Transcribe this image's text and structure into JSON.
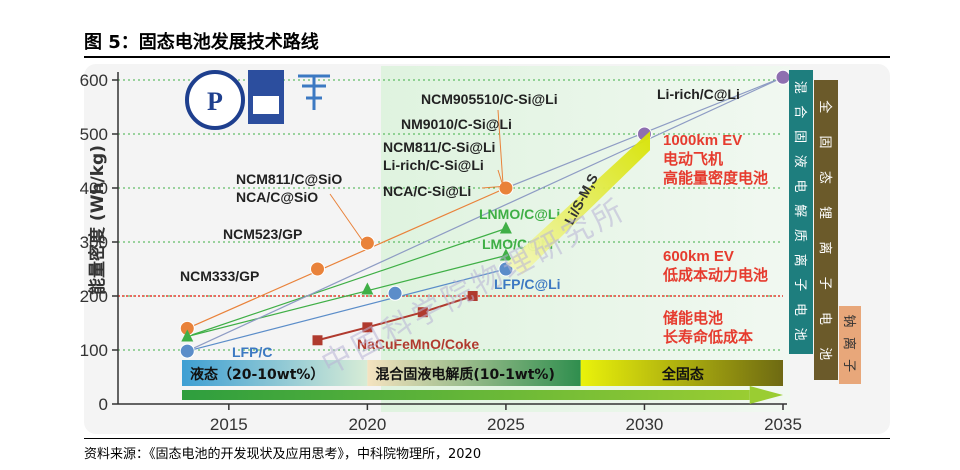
{
  "figure_title": "图 5：固态电池发展技术路线",
  "source_note": "资料来源：《固态电池的开发现状及应用思考》，中科院物理所，2020",
  "chart_data": {
    "type": "scatter",
    "title": "",
    "ylabel": "能量密度 (Wh/kg)",
    "xlabel": "",
    "x_ticks": [
      2015,
      2020,
      2025,
      2030,
      2035
    ],
    "y_ticks": [
      0,
      100,
      200,
      300,
      400,
      500,
      600
    ],
    "xlim": [
      2011,
      2036
    ],
    "ylim": [
      0,
      620
    ],
    "grid": "dotted horizontal",
    "series": [
      {
        "kind": "orange",
        "color": "#E9823A",
        "points": [
          {
            "x": 2013.5,
            "y": 140,
            "label": "NCM333/GP"
          },
          {
            "x": 2018.2,
            "y": 250,
            "label": "NCM523/GP"
          },
          {
            "x": 2020,
            "y": 298,
            "label": "NCM811/C@SiO\nNCA/C@SiO"
          },
          {
            "x": 2025,
            "y": 400,
            "label": "NCM905510/C-Si@Li\nNM9010/C-Si@Li\nNCM811/C-Si@Li\nLi-rich/C-Si@Li\nNCA/C-Si@Li"
          }
        ]
      },
      {
        "kind": "green",
        "color": "#3FAF46",
        "points": [
          {
            "x": 2013.5,
            "y": 125,
            "label": ""
          },
          {
            "x": 2020,
            "y": 212,
            "label": ""
          },
          {
            "x": 2025,
            "y": 275,
            "label": "LMO/C@Li"
          },
          {
            "x": 2025,
            "y": 325,
            "label": "LNMO/C@Li"
          }
        ]
      },
      {
        "kind": "blue",
        "color": "#5B8DC9",
        "points": [
          {
            "x": 2013.5,
            "y": 98,
            "label": "LFP/C"
          },
          {
            "x": 2021,
            "y": 205,
            "label": ""
          },
          {
            "x": 2025,
            "y": 250,
            "label": "LFP/C@Li"
          }
        ]
      },
      {
        "kind": "darkred",
        "color": "#B03A2E",
        "points": [
          {
            "x": 2018.2,
            "y": 118,
            "label": "NaCuFeMnO/Coke"
          },
          {
            "x": 2020,
            "y": 142,
            "label": ""
          },
          {
            "x": 2022,
            "y": 170,
            "label": ""
          },
          {
            "x": 2023.8,
            "y": 200,
            "label": ""
          }
        ]
      },
      {
        "kind": "purple",
        "color": "#8E6FB0",
        "points": [
          {
            "x": 2030,
            "y": 500,
            "label": ""
          },
          {
            "x": 2035,
            "y": 605,
            "label": "Li-rich/C@Li"
          }
        ]
      }
    ],
    "wedge_label": "Li/S-M,S",
    "annotations": [
      {
        "text": "1000km EV\n电动飞机\n高能量密度电池",
        "x": 2030.5,
        "y": 480,
        "color": "#E63B2E"
      },
      {
        "text": "600km EV\n低成本动力电池",
        "x": 2030.5,
        "y": 265,
        "color": "#E63B2E"
      },
      {
        "text": "储能电池\n长寿命低成本",
        "x": 2030.5,
        "y": 150,
        "color": "#E63B2E"
      }
    ],
    "reference_line_y": 200,
    "bands": [
      {
        "label": "液态（20-10wt%）",
        "from": 2011,
        "to": 2020
      },
      {
        "label": "混合固液电解质(10-1wt%)",
        "from": 2020,
        "to": 2027.7
      },
      {
        "label": "全固态",
        "from": 2027.7,
        "to": 2035
      }
    ],
    "vertical_bars": [
      "混合固液电解质离子电池",
      "全固态锂离子电池",
      "钠离子"
    ],
    "watermark": "中国科学院物理研究所"
  }
}
